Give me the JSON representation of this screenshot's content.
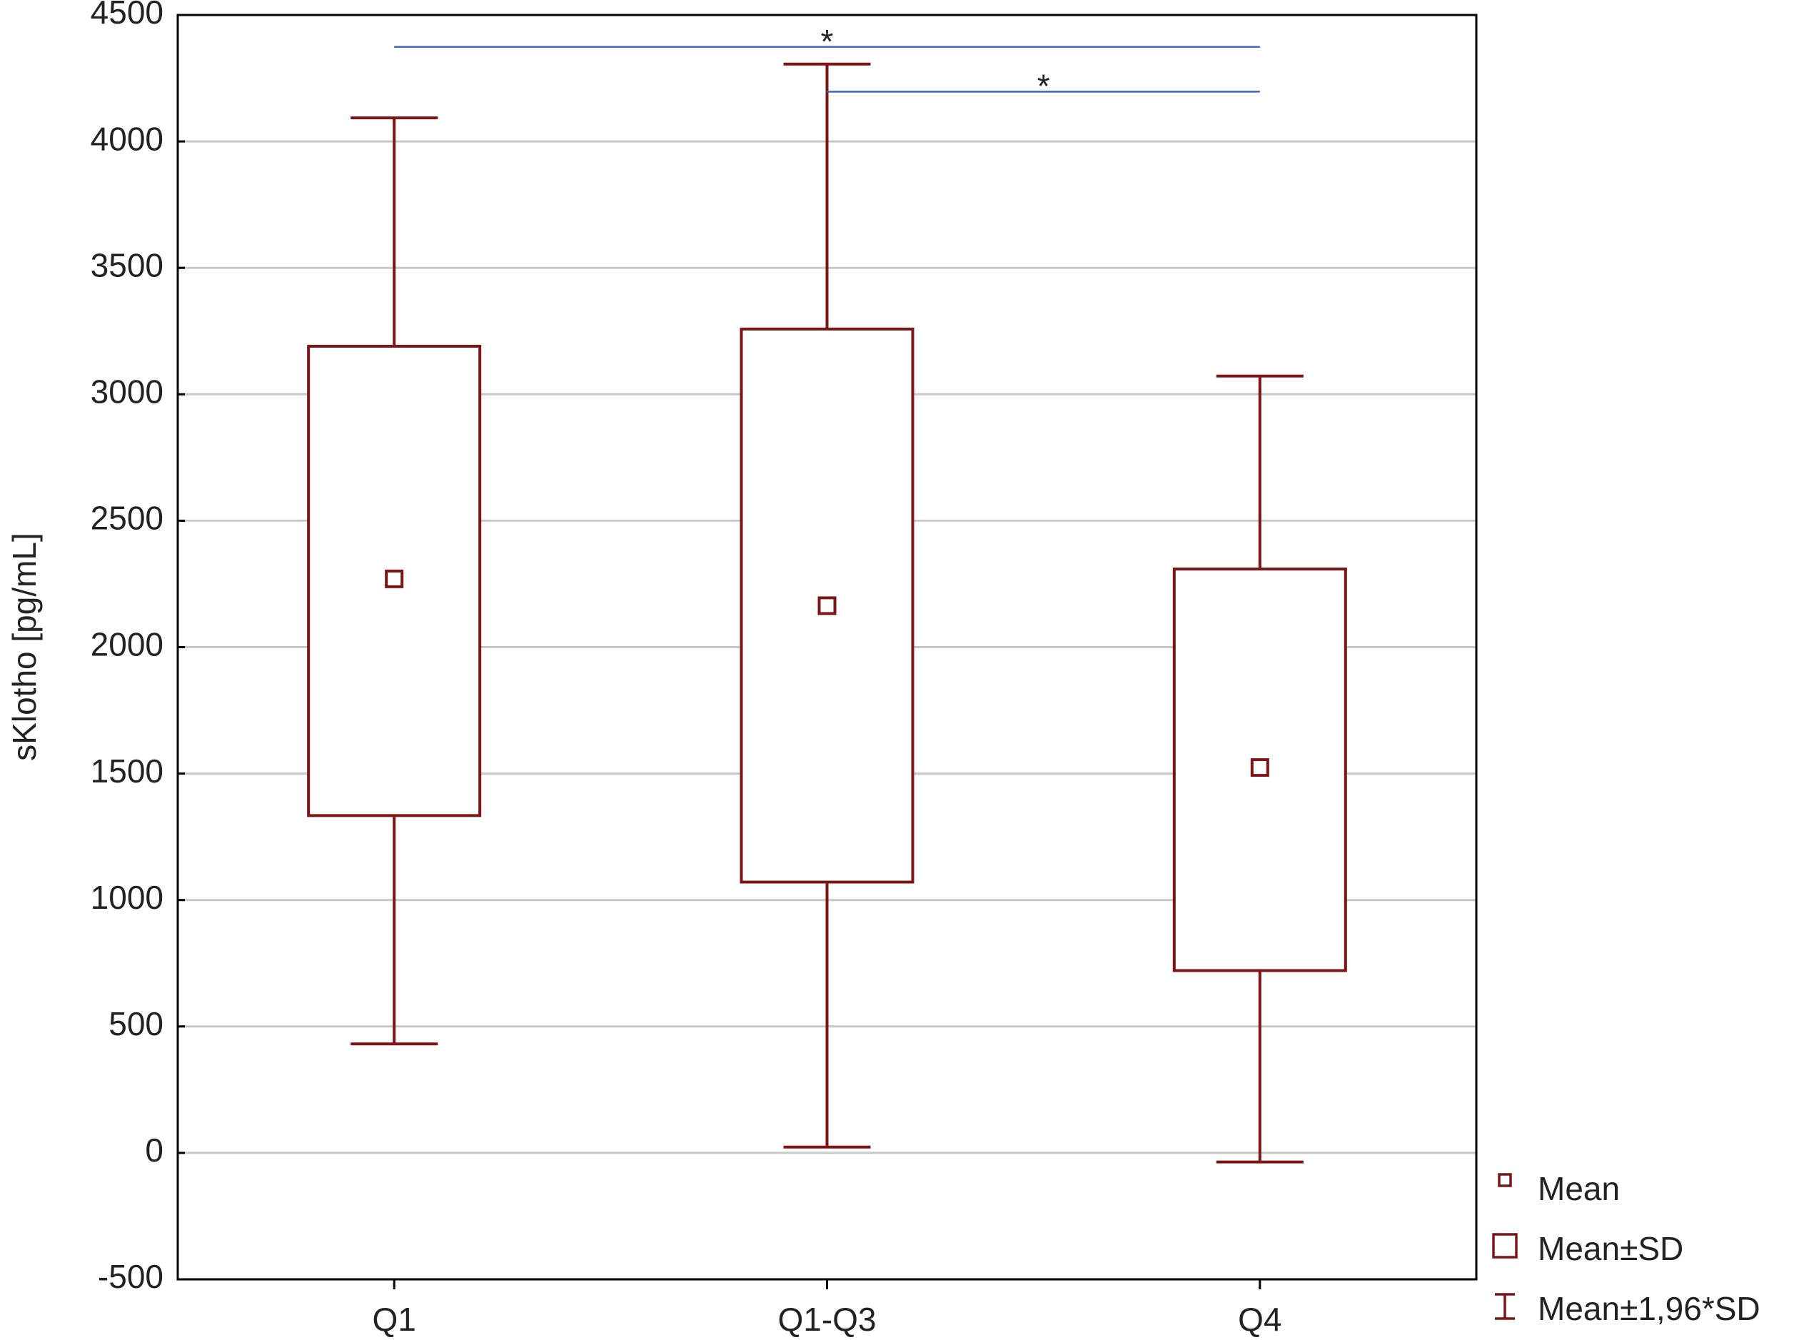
{
  "chart_data": {
    "type": "box",
    "y_label": "sKlotho [pg/mL]",
    "categories": [
      "Q1",
      "Q1-Q3",
      "Q4"
    ],
    "color": "#7f1416",
    "series": [
      {
        "name": "Mean",
        "values": [
          2270,
          2164,
          1524
        ]
      },
      {
        "name": "Mean±SD",
        "low": [
          1334,
          1071,
          721
        ],
        "high": [
          3190,
          3258,
          2309
        ]
      },
      {
        "name": "Mean±1,96*SD",
        "low": [
          431,
          23,
          -36
        ],
        "high": [
          4093,
          4306,
          3072
        ]
      }
    ],
    "ylim": [
      -500,
      4500
    ],
    "yticks": [
      -500,
      0,
      500,
      1000,
      1500,
      2000,
      2500,
      3000,
      3500,
      4000,
      4500
    ],
    "grid": true,
    "annotations": [
      {
        "text": "*",
        "from": 0,
        "to": 2,
        "y": 4374,
        "color": "#3c64c0"
      },
      {
        "text": "*",
        "from": 1,
        "to": 2,
        "y": 4197,
        "color": "#3c64c0"
      }
    ]
  }
}
